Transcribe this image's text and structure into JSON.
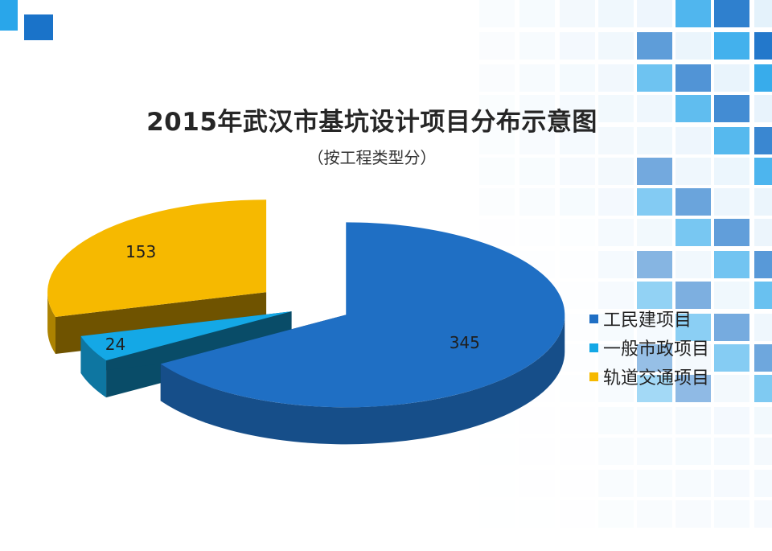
{
  "colors": {
    "accent_dark": "#1a73c9",
    "accent_light": "#29a6ea",
    "tile_pale": "#d9ecfa"
  },
  "chart_data": {
    "type": "pie",
    "title": "2015年武汉市基坑设计项目分布示意图",
    "subtitle": "（按工程类型分）",
    "categories": [
      "工民建项目",
      "一般市政项目",
      "轨道交通项目"
    ],
    "values": [
      345,
      24,
      153
    ],
    "colors": [
      "#1f6fc4",
      "#14a8e6",
      "#f6b900"
    ],
    "legend": "right",
    "style": "3d-exploded"
  }
}
